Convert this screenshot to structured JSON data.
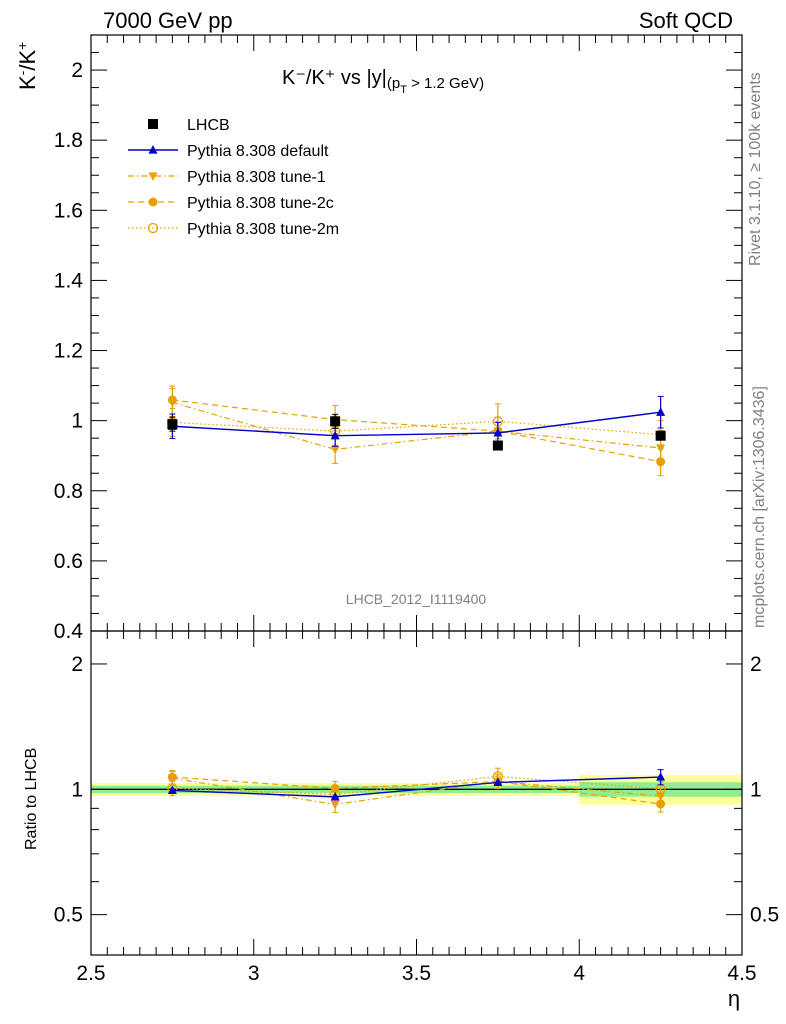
{
  "header": {
    "left": "7000 GeV pp",
    "right": "Soft QCD"
  },
  "side_labels": {
    "rivet": "Rivet 3.1.10, ≥ 100k events",
    "mcplots": "mcplots.cern.ch [arXiv:1306.3436]"
  },
  "watermark": "LHCB_2012_I1119400",
  "colors": {
    "lhcb": "#000000",
    "default": "#0000cc",
    "tunes": "#e8a000",
    "band_inner": "#90ee90",
    "band_outer": "#ffff99"
  },
  "chart_data": [
    {
      "type": "scatter",
      "title_main": "K⁻/K⁺ vs |y|",
      "title_sub": "(p",
      "title_sub_index": "T",
      "title_sub_rest": " > 1.2 GeV)",
      "ylabel": "K⁻/K⁺",
      "xlim": [
        2.5,
        4.5
      ],
      "ylim": [
        0.4,
        2.1
      ],
      "y_ticks": [
        {
          "v": 0.4,
          "t": "0.4"
        },
        {
          "v": 0.6,
          "t": "0.6"
        },
        {
          "v": 0.8,
          "t": "0.8"
        },
        {
          "v": 1.0,
          "t": "1"
        },
        {
          "v": 1.2,
          "t": "1.2"
        },
        {
          "v": 1.4,
          "t": "1.4"
        },
        {
          "v": 1.6,
          "t": "1.6"
        },
        {
          "v": 1.8,
          "t": "1.8"
        },
        {
          "v": 2.0,
          "t": "2"
        }
      ],
      "legend": {
        "placement": "top-left"
      },
      "series": [
        {
          "name": "LHCB",
          "marker": "square",
          "color": "#000000",
          "line": "none",
          "x": [
            2.75,
            3.25,
            3.75,
            4.25
          ],
          "y": [
            0.99,
            0.998,
            0.929,
            0.957
          ],
          "err": [
            0.02,
            0.02,
            0.01,
            0.012
          ]
        },
        {
          "name": "Pythia 8.308 default",
          "marker": "triangle-up",
          "color": "#0000cc",
          "line": "solid",
          "x": [
            2.75,
            3.25,
            3.75,
            4.25
          ],
          "y": [
            0.984,
            0.957,
            0.965,
            1.024
          ],
          "err": [
            0.035,
            0.03,
            0.03,
            0.045
          ]
        },
        {
          "name": "Pythia 8.308 tune-1",
          "marker": "triangle-down",
          "color": "#e8a000",
          "line": "dashdot",
          "x": [
            2.75,
            3.25,
            3.75,
            4.25
          ],
          "y": [
            1.052,
            0.918,
            0.97,
            0.922
          ],
          "err": [
            0.04,
            0.04,
            0.04,
            0.04
          ]
        },
        {
          "name": "Pythia 8.308 tune-2c",
          "marker": "circle",
          "color": "#e8a000",
          "line": "dashed",
          "x": [
            2.75,
            3.25,
            3.75,
            4.25
          ],
          "y": [
            1.059,
            1.003,
            0.97,
            0.883
          ],
          "err": [
            0.04,
            0.04,
            0.04,
            0.04
          ]
        },
        {
          "name": "Pythia 8.308 tune-2m",
          "marker": "circle-open",
          "color": "#e8a000",
          "line": "dotted",
          "x": [
            2.75,
            3.25,
            3.75,
            4.25
          ],
          "y": [
            0.995,
            0.97,
            0.998,
            0.96
          ],
          "err": [
            0.04,
            0.04,
            0.05,
            0.04
          ]
        }
      ]
    },
    {
      "type": "scatter",
      "ylabel": "Ratio to LHCB",
      "xlabel": "η",
      "xlim": [
        2.5,
        4.5
      ],
      "ylim": [
        0.4,
        2.4
      ],
      "yscale": "log",
      "y_ticks": [
        {
          "v": 0.5,
          "t": "0.5"
        },
        {
          "v": 1.0,
          "t": "1"
        },
        {
          "v": 2.0,
          "t": "2"
        }
      ],
      "x_ticks": [
        {
          "v": 2.5,
          "t": "2.5"
        },
        {
          "v": 3.0,
          "t": "3"
        },
        {
          "v": 3.5,
          "t": "3.5"
        },
        {
          "v": 4.0,
          "t": "4"
        },
        {
          "v": 4.5,
          "t": "4.5"
        }
      ],
      "bands": [
        {
          "x0": 2.5,
          "x1": 4.0,
          "inner": [
            0.98,
            1.02
          ],
          "outer": [
            0.965,
            1.035
          ]
        },
        {
          "x0": 4.0,
          "x1": 4.5,
          "inner": [
            0.96,
            1.04
          ],
          "outer": [
            0.918,
            1.082
          ]
        }
      ],
      "series": [
        {
          "name": "Pythia 8.308 default",
          "marker": "triangle-up",
          "color": "#0000cc",
          "line": "solid",
          "x": [
            2.75,
            3.25,
            3.75,
            4.25
          ],
          "y": [
            0.994,
            0.959,
            1.039,
            1.07
          ],
          "err": [
            0.0,
            0.0,
            0.0,
            0.045
          ]
        },
        {
          "name": "Pythia 8.308 tune-1",
          "marker": "triangle-down",
          "color": "#e8a000",
          "line": "dashdot",
          "x": [
            2.75,
            3.25,
            3.75,
            4.25
          ],
          "y": [
            1.063,
            0.92,
            1.044,
            0.963
          ],
          "err": [
            0.04,
            0.04,
            0.04,
            0.04
          ]
        },
        {
          "name": "Pythia 8.308 tune-2c",
          "marker": "circle",
          "color": "#e8a000",
          "line": "dashed",
          "x": [
            2.75,
            3.25,
            3.75,
            4.25
          ],
          "y": [
            1.07,
            1.005,
            1.044,
            0.922
          ],
          "err": [
            0.04,
            0.04,
            0.04,
            0.04
          ]
        },
        {
          "name": "Pythia 8.308 tune-2m",
          "marker": "circle-open",
          "color": "#e8a000",
          "line": "dotted",
          "x": [
            2.75,
            3.25,
            3.75,
            4.25
          ],
          "y": [
            1.005,
            0.972,
            1.074,
            1.003
          ],
          "err": [
            0.04,
            0.04,
            0.05,
            0.04
          ]
        }
      ]
    }
  ]
}
